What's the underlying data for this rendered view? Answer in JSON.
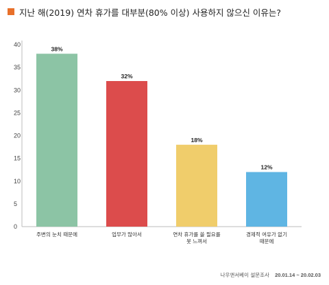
{
  "title": "지난 해(2019) 연차 휴가를  대부분(80% 이상) 사용하지 않으신 이유는?",
  "colors": {
    "title_marker": "#e8702a",
    "bars": [
      "#8cc4a5",
      "#dc4c4c",
      "#f0cd6b",
      "#5fb5e3"
    ],
    "axis": "#bbbbbb"
  },
  "chart_data": {
    "type": "bar",
    "title": "지난 해(2019) 연차 휴가를  대부분(80% 이상) 사용하지 않으신 이유는?",
    "categories": [
      [
        "주변의 눈치 때문에"
      ],
      [
        "업무가 많아서"
      ],
      [
        "연차 휴가를 쓸 필요를",
        "못 느껴서"
      ],
      [
        "경제적 여유가 없기",
        "때문에"
      ]
    ],
    "values": [
      38,
      32,
      18,
      12
    ],
    "value_labels": [
      "38%",
      "32%",
      "18%",
      "12%"
    ],
    "yticks": [
      0,
      5,
      10,
      15,
      20,
      25,
      30,
      35,
      40
    ],
    "ylim": [
      0,
      40
    ],
    "xlabel": "",
    "ylabel": "",
    "grid": false,
    "legend": "none"
  },
  "footer": {
    "source": "나우앤서베이 설문조사",
    "period": "20.01.14 ~ 20.02.03"
  }
}
